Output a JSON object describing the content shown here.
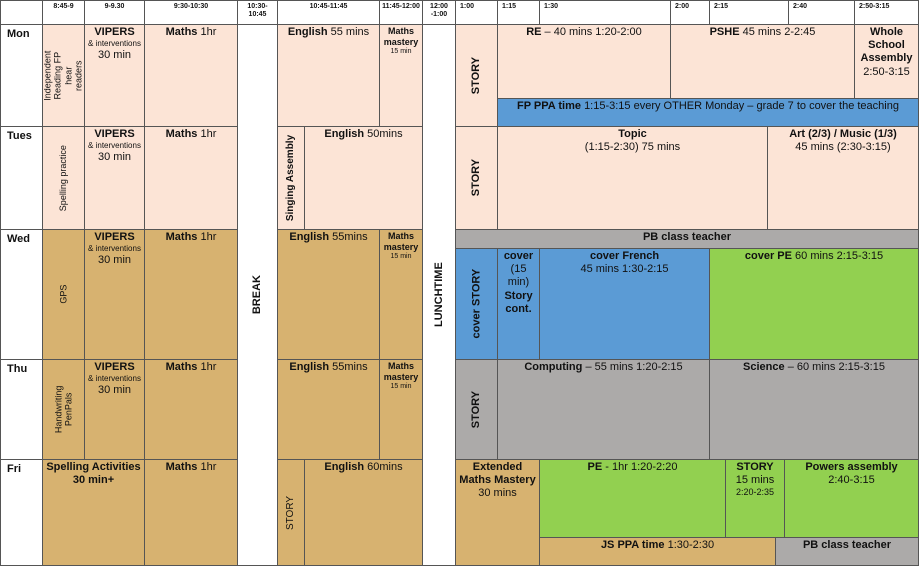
{
  "times": {
    "t1": "8:45-9",
    "t2": "9-9.30",
    "t3": "9:30-10:30",
    "t4": "10:30-10:45",
    "t5": "10:45-11:45",
    "t6": "11:45-12:00",
    "t7": "12:00 -1:00",
    "t8": "1:00",
    "t9": "1:15",
    "t10": "1:30",
    "t11": "2:00",
    "t12": "2:15",
    "t13": "2:40",
    "t14": "2:50-3:15"
  },
  "days": {
    "mon": "Mon",
    "tue": "Tues",
    "wed": "Wed",
    "thu": "Thu",
    "fri": "Fri"
  },
  "breaks": {
    "break": "BREAK",
    "lunch": "LUNCHTIME"
  },
  "mon": {
    "early": "Independent Reading FP hear readers",
    "vipers": "VIPERS",
    "interventions": "& interventions",
    "vipers_time": "30 min",
    "maths": "Maths",
    "maths_time": "1hr",
    "english": "English",
    "english_time": "55 mins",
    "mastery": "Maths mastery",
    "mastery_time": "15 min",
    "story": "STORY",
    "re": "RE",
    "re_time": "– 40 mins 1:20-2:00",
    "pshe": "PSHE",
    "pshe_time": "45 mins 2-2:45",
    "assembly": "Whole School Assembly",
    "assembly_time": "2:50-3:15",
    "ppa": "FP PPA time",
    "ppa_text": "1:15-3:15 every OTHER Monday – grade 7 to cover the teaching"
  },
  "tue": {
    "early": "Spelling practice",
    "vipers": "VIPERS",
    "interventions": "& interventions",
    "vipers_time": "30 min",
    "maths": "Maths",
    "maths_time": "1hr",
    "singing": "Singing Assembly",
    "english": "English",
    "english_time": "50mins",
    "story": "STORY",
    "topic": "Topic",
    "topic_time": "(1:15-2:30) 75 mins",
    "art": "Art (2/3) / Music (1/3)",
    "art_time": "45 mins (2:30-3:15)"
  },
  "wed": {
    "early": "GPS",
    "vipers": "VIPERS",
    "interventions": "& interventions",
    "vipers_time": "30 min",
    "maths": "Maths",
    "maths_time": "1hr",
    "english": "English",
    "english_time": "55mins",
    "mastery": "Maths mastery",
    "mastery_time": "15 min",
    "pb": "PB class teacher",
    "cover_story": "cover STORY",
    "cover1": "cover",
    "cover1_time": "(15 min)",
    "cover1_cont": "Story cont.",
    "french": "cover French",
    "french_time": "45 mins 1:30-2:15",
    "pe": "cover PE",
    "pe_time": "60 mins 2:15-3:15"
  },
  "thu": {
    "early": "Handwriting PenPals",
    "vipers": "VIPERS",
    "interventions": "& interventions",
    "vipers_time": "30 min",
    "maths": "Maths",
    "maths_time": "1hr",
    "english": "English",
    "english_time": "55mins",
    "mastery": "Maths mastery",
    "mastery_time": "15 min",
    "story": "STORY",
    "computing": "Computing",
    "computing_time": "– 55 mins 1:20-2:15",
    "science": "Science",
    "science_time": "– 60 mins 2:15-3:15"
  },
  "fri": {
    "spelling": "Spelling Activities",
    "spelling_time": "30 min+",
    "maths": "Maths",
    "maths_time": "1hr",
    "story": "STORY",
    "english": "English",
    "english_time": "60mins",
    "ext": "Extended Maths Mastery",
    "ext_time": "30 mins",
    "pe": "PE",
    "pe_time": "- 1hr 1:20-2:20",
    "story2": "STORY",
    "story2_time": "15 mins",
    "story2_range": "2:20-2:35",
    "powers": "Powers assembly",
    "powers_time": "2:40-3:15",
    "js_ppa": "JS PPA time",
    "js_ppa_time": "1:30-2:30",
    "pb": "PB class teacher"
  },
  "colors": {
    "pink": "#fce4d6",
    "tan": "#d7b270",
    "blue": "#5b9bd5",
    "green": "#92d050",
    "grey": "#acaaa9"
  }
}
